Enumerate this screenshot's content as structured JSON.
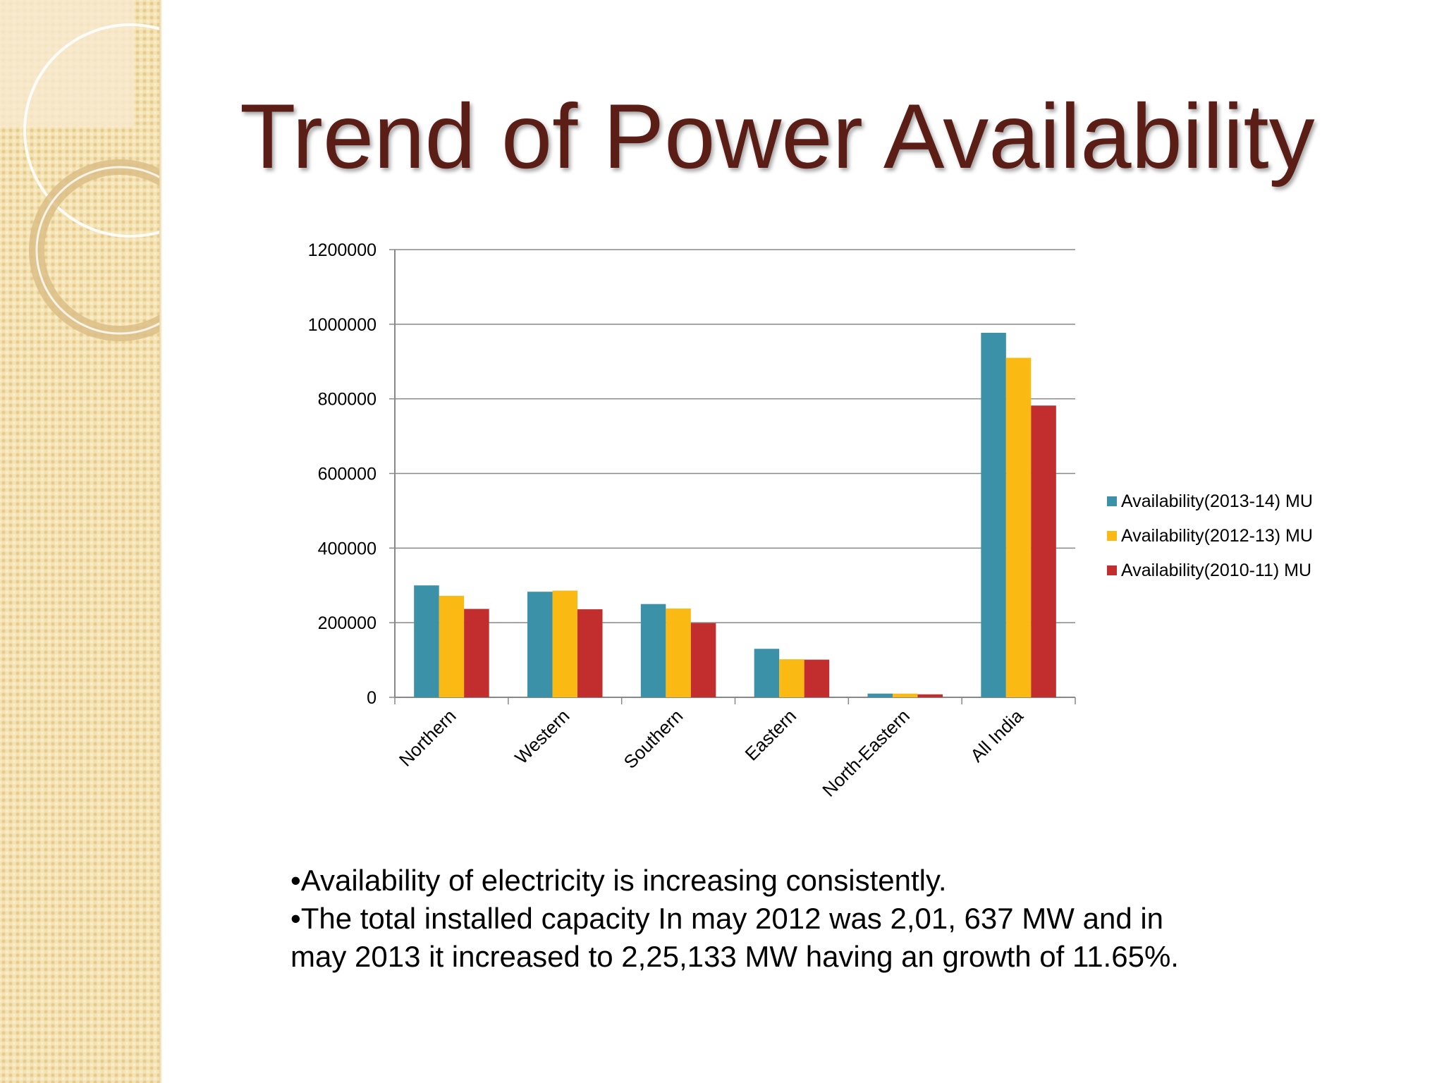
{
  "slide": {
    "title": "Trend of Power Availability",
    "bullets": [
      "•Availability of  electricity is increasing consistently.",
      "•The total installed capacity In may 2012 was 2,01, 637 MW and in may 2013 it increased to 2,25,133 MW having an growth of 11.65%."
    ]
  },
  "colors": {
    "title": "#5a1e17",
    "panel": "#f4e2b0",
    "grid": "#888888"
  },
  "chart_data": {
    "type": "bar",
    "title": "",
    "xlabel": "",
    "ylabel": "",
    "categories": [
      "Northern",
      "Western",
      "Southern",
      "Eastern",
      "North-Eastern",
      "All India"
    ],
    "series": [
      {
        "name": "Availability(2013-14) MU",
        "color": "#3a91a8",
        "values": [
          300000,
          283000,
          250000,
          130000,
          10000,
          977000
        ]
      },
      {
        "name": "Availability(2012-13) MU",
        "color": "#fbba13",
        "values": [
          272000,
          286000,
          238000,
          102000,
          10000,
          910000
        ]
      },
      {
        "name": "Availability(2010-11) MU",
        "color": "#c22d2e",
        "values": [
          237000,
          236000,
          199000,
          101000,
          8000,
          782000
        ]
      }
    ],
    "ylim": [
      0,
      1200000
    ],
    "yticks": [
      "0",
      "200000",
      "400000",
      "600000",
      "800000",
      "1000000",
      "1200000"
    ],
    "grid": true,
    "legend_position": "right"
  }
}
